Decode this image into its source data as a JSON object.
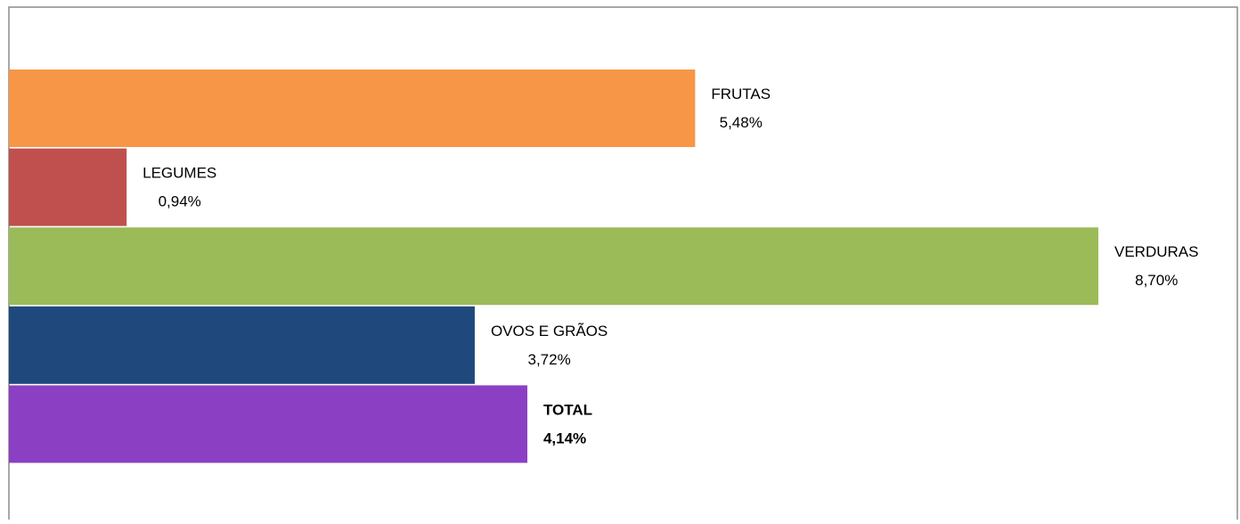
{
  "chart_data": {
    "type": "bar",
    "orientation": "horizontal",
    "categories": [
      "FRUTAS",
      "LEGUMES",
      "VERDURAS",
      "OVOS E GRÃOS",
      "TOTAL"
    ],
    "values": [
      5.48,
      0.94,
      8.7,
      3.72,
      4.14
    ],
    "value_labels": [
      "5,48%",
      "0,94%",
      "8,70%",
      "3,72%",
      "4,14%"
    ],
    "colors": [
      "#f79646",
      "#c0504d",
      "#9bbb59",
      "#1f497d",
      "#8b40c4"
    ]
  }
}
